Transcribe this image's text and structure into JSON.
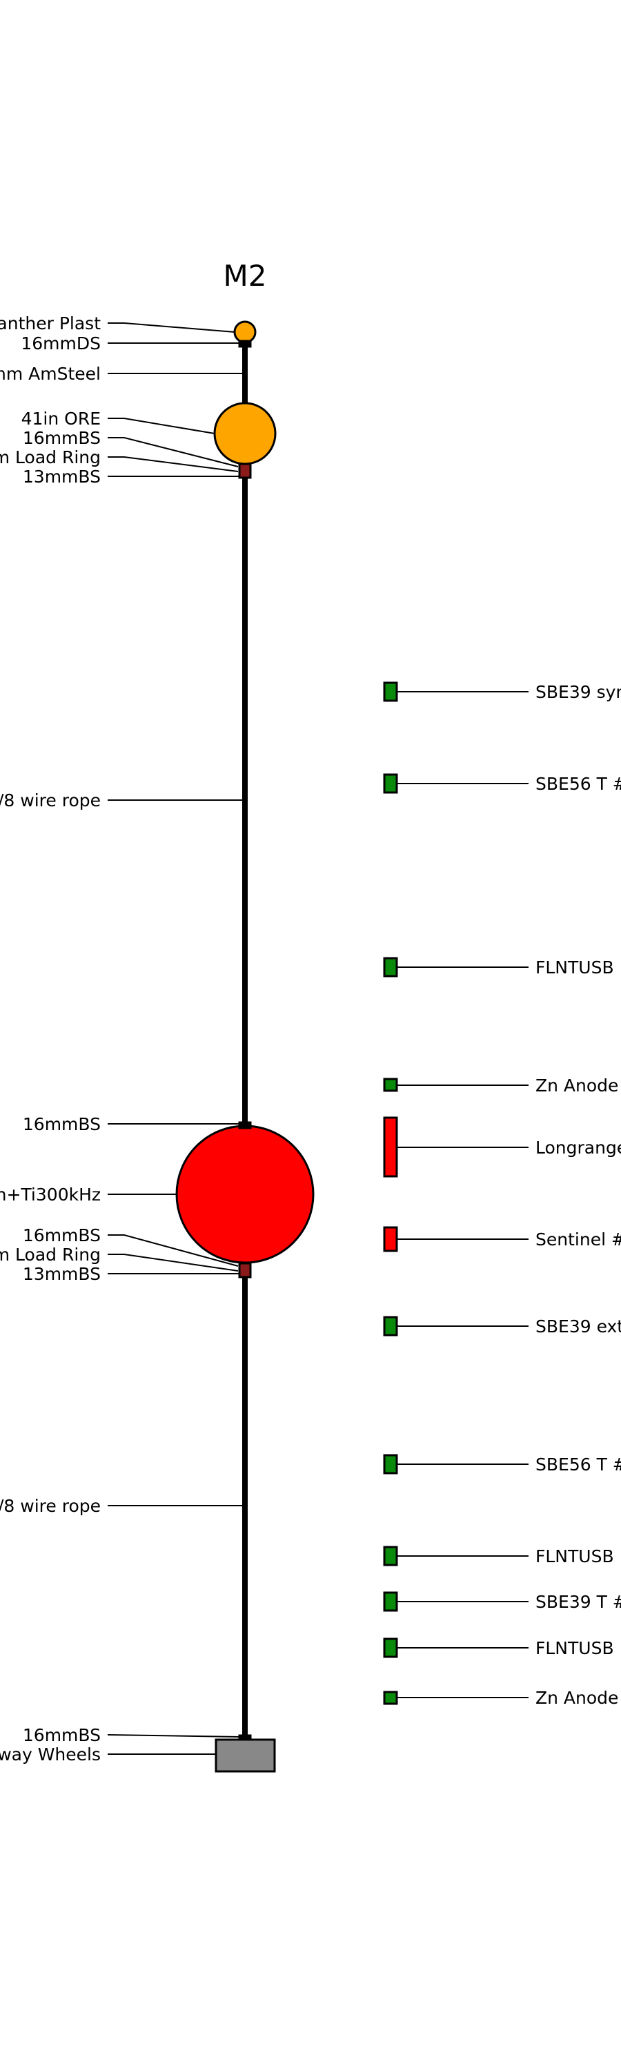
{
  "diagram": {
    "title": "M2",
    "colors": {
      "float_small": "#FFA500",
      "float_main": "#FF0000",
      "instrument": "#0A8A0A",
      "instrument_red": "#FF0000",
      "shackle": "#8B1A1A",
      "anchor": "#888888",
      "line": "#000000"
    },
    "left_labels": [
      "Panther Plast",
      "16mmDS",
      "mm AmSteel",
      "41in ORE",
      "16mmBS",
      "m Load Ring",
      "13mmBS",
      "/8 wire rope",
      "16mmBS",
      "n+Ti300kHz",
      "16mmBS",
      "m Load Ring",
      "13mmBS",
      "/8 wire rope",
      "16mmBS",
      "way Wheels"
    ],
    "right_labels": [
      "SBE39 syn",
      "SBE56 T #",
      "FLNTUSB",
      "Zn Anode",
      "Longrange",
      "Sentinel #",
      "SBE39 ext",
      "SBE56 T #",
      "FLNTUSB",
      "SBE39 T #",
      "FLNTUSB",
      "Zn Anode"
    ]
  }
}
